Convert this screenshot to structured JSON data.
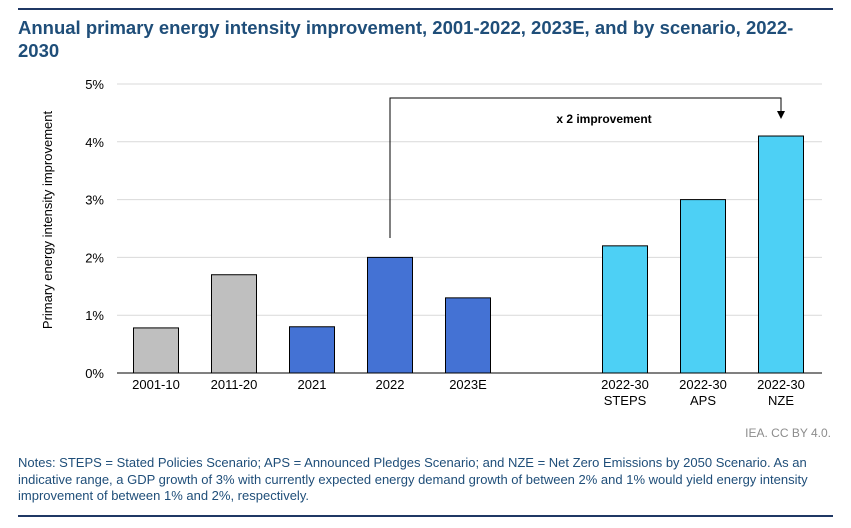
{
  "title": "Annual primary energy intensity improvement, 2001-2022, 2023E, and by scenario, 2022-2030",
  "credit": "IEA. CC BY 4.0.",
  "notes": "Notes: STEPS = Stated Policies Scenario; APS = Announced Pledges Scenario; and NZE = Net Zero Emissions by 2050 Scenario. As an indicative range, a GDP growth of 3% with currently expected energy demand growth of between 2% and 1% would yield energy intensity improvement of between 1% and 2%, respectively.",
  "chart_data": {
    "type": "bar",
    "ylabel": "Primary energy intensity improvement",
    "ylim": [
      0,
      5
    ],
    "yticks": [
      "0%",
      "1%",
      "2%",
      "3%",
      "4%",
      "5%"
    ],
    "grid": true,
    "categories": [
      [
        "2001-10"
      ],
      [
        "2011-20"
      ],
      [
        "2021"
      ],
      [
        "2022"
      ],
      [
        "2023E"
      ],
      [
        "2022-30",
        "STEPS"
      ],
      [
        "2022-30",
        "APS"
      ],
      [
        "2022-30",
        "NZE"
      ]
    ],
    "values": [
      0.78,
      1.7,
      0.8,
      2.0,
      1.3,
      2.2,
      3.0,
      4.1
    ],
    "colors": [
      "#bfbfbf",
      "#bfbfbf",
      "#4472d4",
      "#4472d4",
      "#4472d4",
      "#4dd0f5",
      "#4dd0f5",
      "#4dd0f5"
    ],
    "annotation": {
      "text": "x 2 improvement",
      "from_category": 3,
      "to_category": 7
    }
  }
}
